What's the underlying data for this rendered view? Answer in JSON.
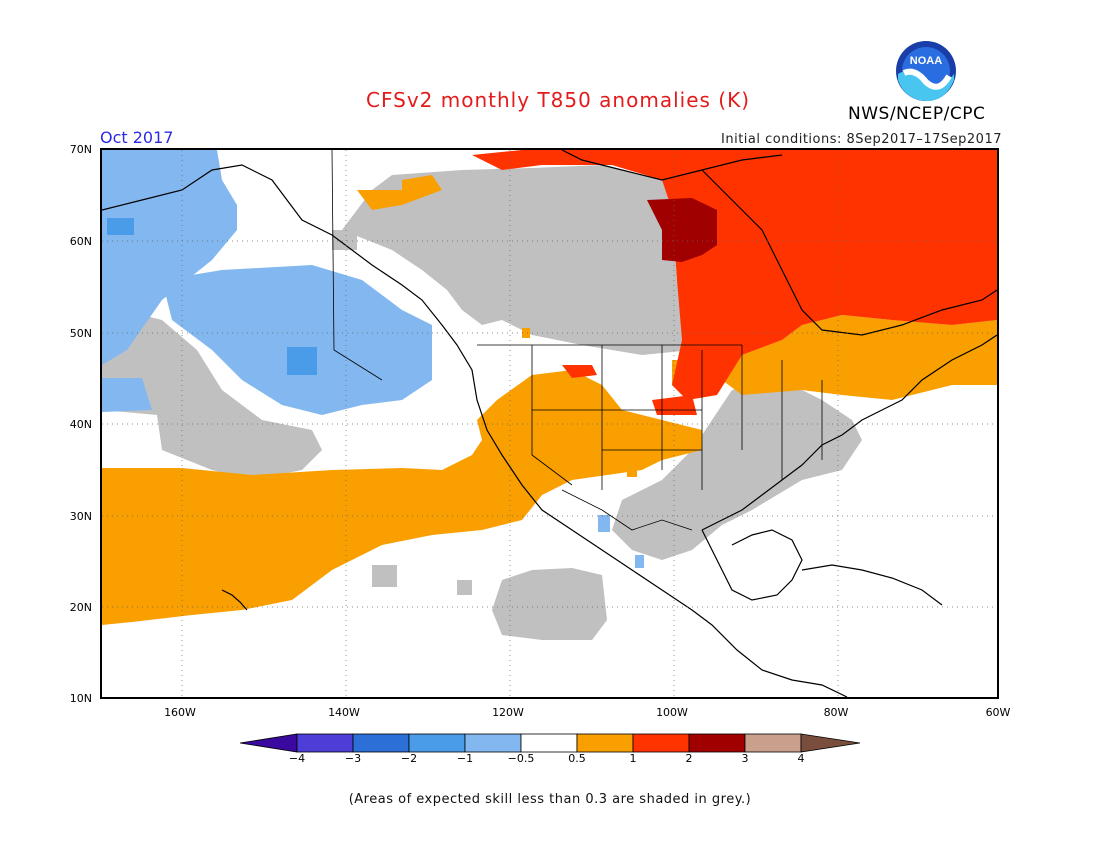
{
  "title": "CFSv2 monthly T850 anomalies (K)",
  "organization": "NWS/NCEP/CPC",
  "valid_month": "Oct 2017",
  "initial_conditions": "Initial conditions: 8Sep2017–17Sep2017",
  "footnote": "(Areas of expected skill less than 0.3 are shaded in grey.)",
  "logo": {
    "text": "NOAA",
    "icon": "noaa-logo-icon"
  },
  "map": {
    "lat_labels": [
      "70N",
      "60N",
      "50N",
      "40N",
      "30N",
      "20N",
      "10N"
    ],
    "lon_labels": [
      "160W",
      "140W",
      "120W",
      "100W",
      "80W",
      "60W"
    ],
    "lat_range": [
      10,
      70
    ],
    "lon_range": [
      -172,
      -60
    ],
    "grid": true,
    "colors": {
      "land_outline": "#000000",
      "grey_low_skill": "#c0c0c0",
      "blue_light": "#82b7f0",
      "blue_mid": "#4a9be8",
      "orange": "#f99f00",
      "red": "#ff3300",
      "dark_red": "#a00000"
    }
  },
  "colorbar": {
    "labels": [
      "−4",
      "−3",
      "−2",
      "−1",
      "−0.5",
      "0.5",
      "1",
      "2",
      "3",
      "4"
    ],
    "colors": [
      "#3a0aa0",
      "#4c3ed6",
      "#2c6fd6",
      "#4a9be8",
      "#82b7f0",
      "#ffffff",
      "#f99f00",
      "#ff3300",
      "#a00000",
      "#c8a08c",
      "#7a4e3c"
    ]
  }
}
